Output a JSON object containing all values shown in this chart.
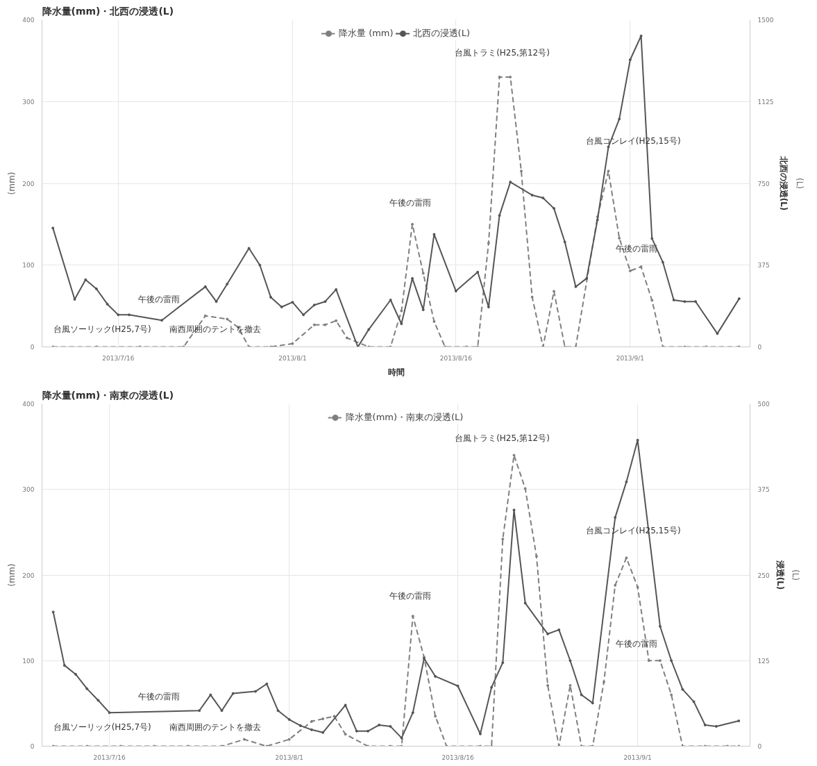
{
  "chart_data": [
    {
      "type": "line",
      "title": "降水量(mm)・北西の浸透(L)",
      "xlabel": "時間",
      "ylabel": "(mm)",
      "y2label": "北西の浸透(L)",
      "annotations": [
        "(L)",
        "台風ソーリック(H25,7号)",
        "午後の雷雨",
        "南西周囲のテントを撤去",
        "午後の雷雨",
        "台風トラミ(H25,第12号)",
        "台風コンレイ(H25,15号)",
        "午後の雷雨"
      ],
      "xlim": [
        "2013-07-09",
        "2013-09-12"
      ],
      "xticks": [
        {
          "value": "2013-07-16",
          "label": "2013/7/16"
        },
        {
          "value": "2013-08-01",
          "label": "2013/8/1"
        },
        {
          "value": "2013-08-16",
          "label": "2013/8/16"
        },
        {
          "value": "2013-09-01",
          "label": "2013/9/1"
        }
      ],
      "ylim": [
        0,
        400
      ],
      "yticks": [
        0,
        100,
        200,
        300,
        400
      ],
      "y2lim": [
        0,
        1500
      ],
      "y2ticks": [
        0,
        375,
        750,
        1125,
        1500
      ],
      "grid": true,
      "legend": "top",
      "marker": "circle",
      "series": [
        {
          "name": "降水量 (mm)",
          "color": "#7f7f7f",
          "line_style": "dashed",
          "x": [
            "2013-07-10",
            "2013-07-14",
            "2013-07-18",
            "2013-07-22",
            "2013-07-24",
            "2013-07-26",
            "2013-07-27",
            "2013-07-28",
            "2013-07-30",
            "2013-08-01",
            "2013-08-03",
            "2013-08-04",
            "2013-08-05",
            "2013-08-06",
            "2013-08-08",
            "2013-08-10",
            "2013-08-11",
            "2013-08-12",
            "2013-08-13",
            "2013-08-14",
            "2013-08-15",
            "2013-08-17",
            "2013-08-18",
            "2013-08-19",
            "2013-08-20",
            "2013-08-21",
            "2013-08-22",
            "2013-08-23",
            "2013-08-24",
            "2013-08-25",
            "2013-08-26",
            "2013-08-27",
            "2013-08-29",
            "2013-08-30",
            "2013-08-31",
            "2013-09-01",
            "2013-09-02",
            "2013-09-03",
            "2013-09-04",
            "2013-09-06",
            "2013-09-08",
            "2013-09-11"
          ],
          "values": [
            0,
            0,
            0,
            0,
            38,
            34,
            24,
            0,
            0,
            4,
            27,
            27,
            32,
            11,
            0,
            0,
            44,
            150,
            90,
            31,
            0,
            0,
            0,
            127,
            330,
            330,
            215,
            61,
            0,
            68,
            0,
            0,
            159,
            215,
            133,
            93,
            98,
            57,
            0,
            0,
            0,
            0
          ]
        },
        {
          "name": "北西の浸透(L)",
          "color": "#555555",
          "line_style": "solid",
          "axis": "y2",
          "x": [
            "2013-07-10",
            "2013-07-12",
            "2013-07-13",
            "2013-07-14",
            "2013-07-15",
            "2013-07-16",
            "2013-07-17",
            "2013-07-20",
            "2013-07-24",
            "2013-07-25",
            "2013-07-26",
            "2013-07-28",
            "2013-07-29",
            "2013-07-30",
            "2013-07-31",
            "2013-08-01",
            "2013-08-02",
            "2013-08-03",
            "2013-08-04",
            "2013-08-05",
            "2013-08-07",
            "2013-08-08",
            "2013-08-10",
            "2013-08-11",
            "2013-08-12",
            "2013-08-13",
            "2013-08-14",
            "2013-08-16",
            "2013-08-18",
            "2013-08-19",
            "2013-08-20",
            "2013-08-21",
            "2013-08-23",
            "2013-08-24",
            "2013-08-25",
            "2013-08-26",
            "2013-08-27",
            "2013-08-28",
            "2013-08-29",
            "2013-08-30",
            "2013-08-31",
            "2013-09-01",
            "2013-09-02",
            "2013-09-03",
            "2013-09-04",
            "2013-09-05",
            "2013-09-06",
            "2013-09-07",
            "2013-09-09",
            "2013-09-11"
          ],
          "values": [
            545,
            218,
            308,
            266,
            196,
            147,
            147,
            122,
            276,
            208,
            288,
            452,
            375,
            228,
            183,
            205,
            147,
            192,
            208,
            263,
            0,
            80,
            215,
            106,
            314,
            170,
            516,
            256,
            343,
            183,
            603,
            756,
            696,
            683,
            635,
            481,
            276,
            314,
            583,
            917,
            1045,
            1317,
            1426,
            497,
            388,
            215,
            208,
            208,
            61,
            221
          ]
        }
      ]
    },
    {
      "type": "line",
      "title": "降水量(mm)・南東の浸透(L)",
      "ylabel": "(mm)",
      "y2label": "浸透(L)",
      "annotations": [
        "(L)",
        "台風ソーリック(H25,7号)",
        "午後の雷雨",
        "南西周囲のテントを撤去",
        "午後の雷雨",
        "台風トラミ(H25,第12号)",
        "台風コンレイ(H25,15号)",
        "午後の雷雨"
      ],
      "xlim": [
        "2013-07-10",
        "2013-09-11"
      ],
      "xticks": [
        {
          "value": "2013-07-16",
          "label": "2013/7/16"
        },
        {
          "value": "2013-08-01",
          "label": "2013/8/1"
        },
        {
          "value": "2013-08-16",
          "label": "2013/8/16"
        },
        {
          "value": "2013-09-01",
          "label": "2013/9/1"
        }
      ],
      "ylim": [
        0,
        400
      ],
      "yticks": [
        0,
        100,
        200,
        300,
        400
      ],
      "y2lim": [
        0,
        500
      ],
      "y2ticks": [
        0,
        125,
        250,
        375,
        500
      ],
      "grid": true,
      "legend": "top",
      "marker": "circle",
      "series": [
        {
          "name": "降水量(mm)・南東の浸透(L)",
          "color": "#7f7f7f",
          "line_style": "dashed",
          "x": [
            "2013-07-11",
            "2013-07-14",
            "2013-07-17",
            "2013-07-20",
            "2013-07-23",
            "2013-07-26",
            "2013-07-28",
            "2013-07-30",
            "2013-08-01",
            "2013-08-03",
            "2013-08-04",
            "2013-08-05",
            "2013-08-06",
            "2013-08-08",
            "2013-08-10",
            "2013-08-11",
            "2013-08-12",
            "2013-08-13",
            "2013-08-14",
            "2013-08-15",
            "2013-08-18",
            "2013-08-19",
            "2013-08-20",
            "2013-08-21",
            "2013-08-22",
            "2013-08-23",
            "2013-08-24",
            "2013-08-25",
            "2013-08-26",
            "2013-08-27",
            "2013-08-28",
            "2013-08-29",
            "2013-08-30",
            "2013-08-31",
            "2013-09-01",
            "2013-09-02",
            "2013-09-03",
            "2013-09-04",
            "2013-09-05",
            "2013-09-07",
            "2013-09-09",
            "2013-09-10"
          ],
          "values": [
            0,
            0,
            0,
            0,
            0,
            0,
            8,
            0,
            8,
            29,
            32,
            35,
            14,
            0,
            0,
            0,
            152,
            104,
            35,
            0,
            0,
            0,
            242,
            340,
            301,
            222,
            71,
            0,
            71,
            0,
            0,
            75,
            188,
            220,
            186,
            100,
            100,
            60,
            0,
            0,
            0,
            0
          ]
        },
        {
          "color": "#555555",
          "line_style": "solid",
          "axis": "y2",
          "x": [
            "2013-07-11",
            "2013-07-12",
            "2013-07-13",
            "2013-07-14",
            "2013-07-15",
            "2013-07-16",
            "2013-07-24",
            "2013-07-25",
            "2013-07-26",
            "2013-07-27",
            "2013-07-29",
            "2013-07-30",
            "2013-07-31",
            "2013-08-01",
            "2013-08-02",
            "2013-08-03",
            "2013-08-04",
            "2013-08-06",
            "2013-08-07",
            "2013-08-08",
            "2013-08-09",
            "2013-08-10",
            "2013-08-11",
            "2013-08-12",
            "2013-08-13",
            "2013-08-14",
            "2013-08-16",
            "2013-08-18",
            "2013-08-19",
            "2013-08-20",
            "2013-08-21",
            "2013-08-22",
            "2013-08-24",
            "2013-08-25",
            "2013-08-26",
            "2013-08-27",
            "2013-08-28",
            "2013-08-30",
            "2013-08-31",
            "2013-09-01",
            "2013-09-03",
            "2013-09-04",
            "2013-09-05",
            "2013-09-06",
            "2013-09-07",
            "2013-09-08",
            "2013-09-10"
          ],
          "values": [
            196,
            118,
            105,
            84,
            67,
            49,
            52,
            75,
            52,
            77,
            80,
            91,
            52,
            39,
            30,
            24,
            20,
            60,
            22,
            22,
            31,
            29,
            12,
            49,
            128,
            102,
            88,
            18,
            86,
            122,
            345,
            209,
            164,
            170,
            125,
            75,
            63,
            334,
            386,
            447,
            175,
            125,
            83,
            65,
            31,
            29,
            37
          ]
        }
      ]
    }
  ]
}
